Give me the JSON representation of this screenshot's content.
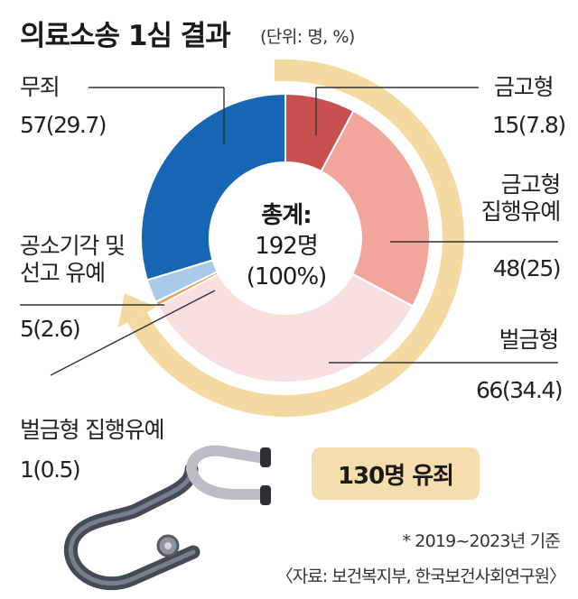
{
  "header": {
    "title": "의료소송 1심 결과",
    "unit": "(단위: 명, %)"
  },
  "chart_data": {
    "type": "pie",
    "style": "donut",
    "total_label": "총계:",
    "total_value": "192명",
    "total_percent": "(100%)",
    "slices": [
      {
        "key": "s1",
        "name": "금고형",
        "line2": "",
        "count": 15,
        "percent": 7.8,
        "value_text": "15(7.8)",
        "color": "#c8504f"
      },
      {
        "key": "s2",
        "name": "금고형",
        "line2": "집행유예",
        "count": 48,
        "percent": 25,
        "value_text": "48(25)",
        "color": "#f2a59a"
      },
      {
        "key": "s3",
        "name": "벌금형",
        "line2": "",
        "count": 66,
        "percent": 34.4,
        "value_text": "66(34.4)",
        "color": "#f8dfe0"
      },
      {
        "key": "s4",
        "name": "벌금형 집행유예",
        "line2": "",
        "count": 1,
        "percent": 0.5,
        "value_text": "1(0.5)",
        "color": "#e6a25a"
      },
      {
        "key": "s5",
        "name": "공소기각 및",
        "line2": "선고 유예",
        "count": 5,
        "percent": 2.6,
        "value_text": "5(2.6)",
        "color": "#a9c9e9"
      },
      {
        "key": "s6",
        "name": "무죄",
        "line2": "",
        "count": 57,
        "percent": 29.7,
        "value_text": "57(29.7)",
        "color": "#1666b3"
      }
    ],
    "highlight": {
      "label": "130명 유죄",
      "color": "#f4d9a0"
    }
  },
  "footnote": "* 2019~2023년 기준",
  "source": "〈자료: 보건복지부, 한국보건사회연구원〉",
  "icons": {
    "illustration": "stethoscope-icon"
  }
}
